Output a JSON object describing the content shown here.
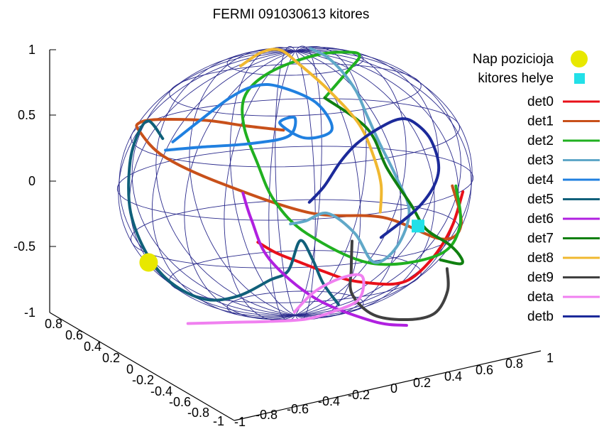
{
  "chart_data": {
    "type": "line",
    "title": "FERMI 091030613 kitores",
    "z_ticks": [
      "1",
      "0.5",
      "0",
      "-0.5",
      "-1"
    ],
    "x_ticks": [
      "0.8",
      "0.6",
      "0.4",
      "0.2",
      "0",
      "-0.2",
      "-0.4",
      "-0.6",
      "-0.8",
      "-1"
    ],
    "y_ticks": [
      "-1",
      "-0.8",
      "-0.6",
      "-0.4",
      "-0.2",
      "0",
      "0.2",
      "0.4",
      "0.6",
      "0.8",
      "1"
    ],
    "grid": "sphere wireframe",
    "legend_position": "top-right",
    "sun": {
      "label": "Nap pozicioja",
      "color": "#e8e800",
      "pos": [
        -0.18,
        -0.86,
        -0.65
      ]
    },
    "burst": {
      "label": "kitores helye",
      "color": "#22e0e8",
      "pos": [
        0.55,
        0.78,
        -0.17
      ]
    },
    "series": [
      {
        "name": "det0",
        "color": "#e8101a",
        "points": [
          [
            0.95,
            -0.07,
            -0.18
          ],
          [
            0.92,
            0.03,
            -0.27
          ],
          [
            0.86,
            0.16,
            -0.36
          ],
          [
            0.78,
            0.28,
            -0.45
          ],
          [
            0.68,
            0.4,
            -0.54
          ],
          [
            0.56,
            0.52,
            -0.6
          ],
          [
            0.44,
            0.62,
            -0.64
          ],
          [
            0.36,
            0.7,
            -0.63
          ],
          [
            0.3,
            0.78,
            -0.55
          ],
          [
            0.22,
            0.86,
            -0.42
          ],
          [
            0.14,
            0.92,
            -0.26
          ],
          [
            0.05,
            0.96,
            -0.05
          ]
        ]
      },
      {
        "name": "det1",
        "color": "#c8501a",
        "points": [
          [
            0.78,
            0.05,
            0.62
          ],
          [
            0.73,
            -0.18,
            0.64
          ],
          [
            0.62,
            -0.42,
            0.65
          ],
          [
            0.35,
            -0.73,
            0.58
          ],
          [
            0.05,
            -0.88,
            0.47
          ],
          [
            -0.23,
            -0.92,
            0.33
          ],
          [
            -0.55,
            -0.83,
            0.05
          ],
          [
            -0.8,
            -0.55,
            -0.22
          ],
          [
            -0.88,
            -0.05,
            -0.47
          ],
          [
            -0.79,
            0.38,
            -0.48
          ],
          [
            -0.35,
            0.78,
            -0.52
          ],
          [
            0.05,
            0.95,
            -0.3
          ],
          [
            0.25,
            0.93,
            0.05
          ]
        ]
      },
      {
        "name": "det2",
        "color": "#20b020",
        "points": [
          [
            0.55,
            0.25,
            0.8
          ],
          [
            0.25,
            0.33,
            0.91
          ],
          [
            -0.1,
            0.35,
            0.93
          ],
          [
            -0.4,
            0.25,
            0.88
          ],
          [
            -0.6,
            0.02,
            0.8
          ],
          [
            -0.72,
            -0.25,
            0.64
          ],
          [
            -0.78,
            -0.4,
            0.45
          ],
          [
            -0.85,
            -0.42,
            0.2
          ],
          [
            -0.9,
            -0.35,
            -0.1
          ],
          [
            -0.88,
            -0.25,
            -0.38
          ],
          [
            -0.78,
            -0.05,
            -0.6
          ],
          [
            -0.55,
            0.35,
            -0.76
          ],
          [
            -0.2,
            0.78,
            -0.6
          ],
          [
            0.1,
            0.95,
            -0.3
          ],
          [
            0.25,
            0.95,
            0.05
          ]
        ]
      },
      {
        "name": "det3",
        "color": "#60a8c8",
        "points": [
          [
            -0.25,
            0.05,
            0.95
          ],
          [
            -0.2,
            0.15,
            0.9
          ],
          [
            -0.1,
            0.25,
            0.82
          ],
          [
            0.02,
            0.35,
            0.7
          ],
          [
            0.1,
            0.42,
            0.55
          ],
          [
            0.15,
            0.5,
            0.35
          ],
          [
            0.18,
            0.6,
            0.1
          ],
          [
            0.22,
            0.68,
            -0.15
          ],
          [
            0.28,
            0.62,
            -0.4
          ],
          [
            0.35,
            0.5,
            -0.5
          ],
          [
            0.28,
            0.38,
            -0.3
          ],
          [
            0.1,
            0.2,
            -0.2
          ],
          [
            -0.05,
            0.05,
            -0.3
          ],
          [
            -0.15,
            -0.05,
            -0.35
          ]
        ]
      },
      {
        "name": "det4",
        "color": "#2080e0",
        "points": [
          [
            0.25,
            -0.7,
            0.32
          ],
          [
            0.38,
            -0.48,
            0.38
          ],
          [
            0.5,
            -0.18,
            0.44
          ],
          [
            0.58,
            0.05,
            0.52
          ],
          [
            0.55,
            0.08,
            0.65
          ],
          [
            0.45,
            -0.02,
            0.58
          ],
          [
            0.42,
            0.12,
            0.46
          ],
          [
            0.48,
            0.28,
            0.54
          ],
          [
            0.4,
            0.18,
            0.72
          ],
          [
            0.25,
            -0.05,
            0.8
          ],
          [
            0.15,
            -0.2,
            0.78
          ],
          [
            0.1,
            -0.35,
            0.68
          ],
          [
            0.18,
            -0.52,
            0.52
          ],
          [
            0.24,
            -0.66,
            0.38
          ]
        ]
      },
      {
        "name": "det5",
        "color": "#10607a",
        "points": [
          [
            0.7,
            0.35,
            -0.72
          ],
          [
            0.62,
            0.25,
            -0.58
          ],
          [
            0.55,
            0.18,
            -0.42
          ],
          [
            0.48,
            0.1,
            -0.3
          ],
          [
            0.4,
            0.02,
            -0.55
          ],
          [
            0.3,
            -0.1,
            -0.65
          ],
          [
            0.2,
            -0.3,
            -0.8
          ],
          [
            0.1,
            -0.5,
            -0.85
          ],
          [
            0.02,
            -0.7,
            -0.75
          ],
          [
            -0.05,
            -0.85,
            -0.55
          ],
          [
            -0.1,
            -0.95,
            -0.25
          ],
          [
            -0.05,
            -0.95,
            0.1
          ],
          [
            0.02,
            -0.9,
            0.35
          ],
          [
            0.1,
            -0.82,
            0.5
          ],
          [
            0.22,
            -0.72,
            0.4
          ]
        ]
      },
      {
        "name": "det6",
        "color": "#b020e0",
        "points": [
          [
            0.45,
            0.7,
            -0.95
          ],
          [
            0.7,
            0.55,
            -0.85
          ],
          [
            0.9,
            0.25,
            -0.62
          ],
          [
            0.98,
            0.0,
            -0.3
          ],
          [
            0.99,
            -0.1,
            0.0
          ],
          [
            0.98,
            -0.15,
            0.2
          ]
        ]
      },
      {
        "name": "det7",
        "color": "#108010",
        "points": [
          [
            0.55,
            0.25,
            0.8
          ],
          [
            0.6,
            0.5,
            0.58
          ],
          [
            0.66,
            0.62,
            0.3
          ],
          [
            0.6,
            0.75,
            0.0
          ],
          [
            0.52,
            0.82,
            -0.2
          ],
          [
            0.3,
            0.92,
            -0.38
          ],
          [
            0.05,
            0.95,
            -0.55
          ],
          [
            -0.25,
            0.9,
            -0.68
          ],
          [
            -0.5,
            0.75,
            -0.72
          ]
        ]
      },
      {
        "name": "det8",
        "color": "#f0b830",
        "points": [
          [
            -0.6,
            -0.4,
            0.72
          ],
          [
            -0.4,
            -0.25,
            0.88
          ],
          [
            -0.1,
            -0.1,
            0.98
          ],
          [
            0.2,
            0.05,
            0.96
          ],
          [
            0.45,
            0.25,
            0.84
          ],
          [
            0.6,
            0.45,
            0.62
          ],
          [
            0.7,
            0.55,
            0.4
          ],
          [
            0.75,
            0.6,
            0.2
          ],
          [
            0.78,
            0.6,
            0.0
          ]
        ]
      },
      {
        "name": "det9",
        "color": "#404040",
        "points": [
          [
            0.85,
            0.45,
            -0.2
          ],
          [
            0.88,
            0.45,
            -0.4
          ],
          [
            0.85,
            0.45,
            -0.6
          ],
          [
            0.7,
            0.55,
            -0.8
          ],
          [
            0.4,
            0.7,
            -0.92
          ],
          [
            0.05,
            0.8,
            -0.97
          ],
          [
            -0.3,
            0.82,
            -0.9
          ],
          [
            -0.55,
            0.78,
            -0.8
          ]
        ]
      },
      {
        "name": "deta",
        "color": "#f080f0",
        "points": [
          [
            0.4,
            -0.55,
            -0.95
          ],
          [
            0.55,
            -0.3,
            -0.9
          ],
          [
            0.7,
            -0.05,
            -0.85
          ],
          [
            0.82,
            0.18,
            -0.8
          ],
          [
            0.9,
            0.35,
            -0.72
          ],
          [
            0.92,
            0.5,
            -0.62
          ],
          [
            0.8,
            0.5,
            -0.48
          ],
          [
            0.6,
            0.35,
            -0.55
          ],
          [
            0.62,
            0.2,
            -0.65
          ],
          [
            0.7,
            0.1,
            -0.78
          ]
        ]
      },
      {
        "name": "detb",
        "color": "#1c2a9a",
        "points": [
          [
            -0.2,
            0.05,
            -0.2
          ],
          [
            -0.1,
            0.15,
            -0.05
          ],
          [
            -0.05,
            0.25,
            0.15
          ],
          [
            0.0,
            0.35,
            0.3
          ],
          [
            0.0,
            0.48,
            0.42
          ],
          [
            0.05,
            0.6,
            0.5
          ],
          [
            0.15,
            0.7,
            0.5
          ],
          [
            0.3,
            0.82,
            0.4
          ],
          [
            0.45,
            0.88,
            0.2
          ],
          [
            0.6,
            0.8,
            0.0
          ],
          [
            0.75,
            0.6,
            -0.2
          ]
        ]
      }
    ]
  }
}
